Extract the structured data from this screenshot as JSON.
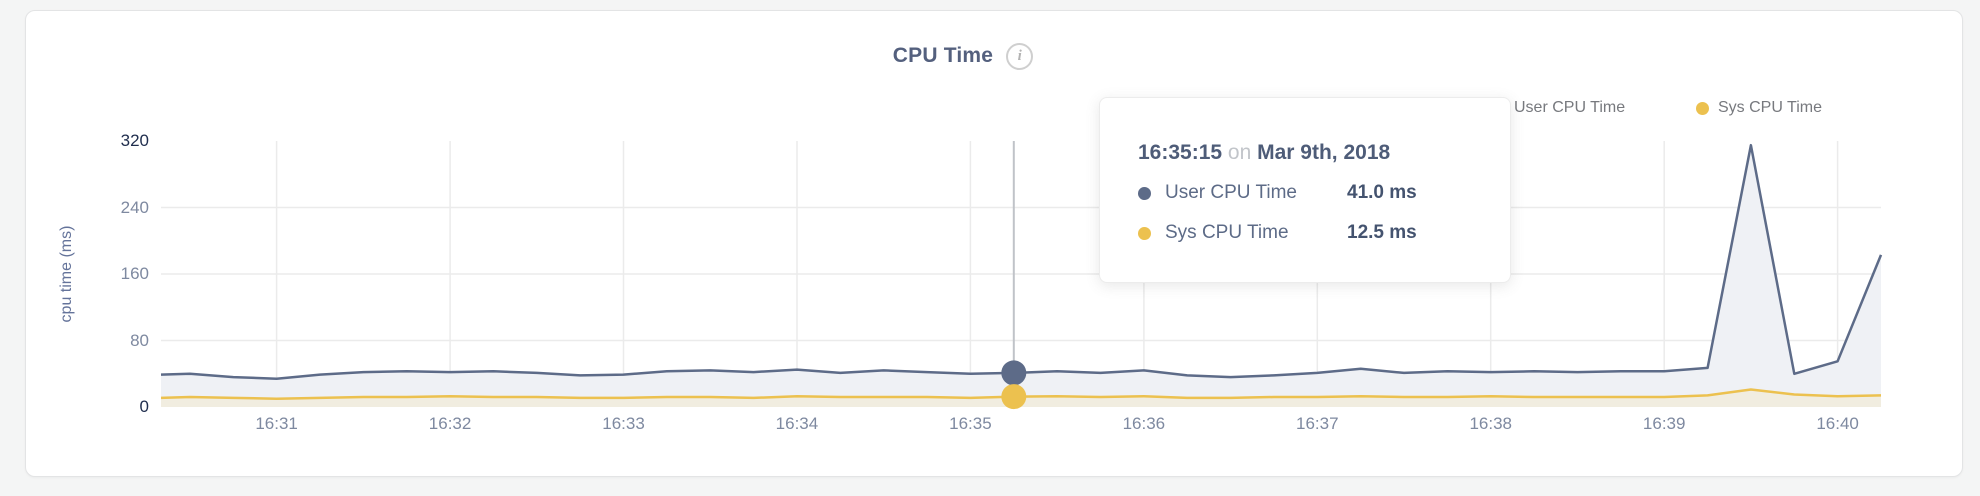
{
  "header": {
    "title": "CPU Time",
    "info_icon": "i"
  },
  "legend": [
    {
      "label": "User CPU Time",
      "color": "#5d6b88"
    },
    {
      "label": "Sys CPU Time",
      "color": "#ecc14f"
    }
  ],
  "tooltip": {
    "time": "16:35:15",
    "connector": "on",
    "date": "Mar 9th, 2018",
    "rows": [
      {
        "label": "User CPU Time",
        "value": "41.0 ms",
        "color": "#5d6b88"
      },
      {
        "label": "Sys CPU Time",
        "value": "12.5 ms",
        "color": "#ecc14f"
      }
    ]
  },
  "axis": {
    "tick_color": "#7e89a0",
    "tick_color_strong": "#1f2d4d",
    "grid_color": "#ebebeb",
    "crosshair_color": "#c0c3c8"
  },
  "chart_data": {
    "type": "area",
    "title": "CPU Time",
    "xlabel": "",
    "ylabel": "cpu time (ms)",
    "ylim": [
      0,
      320
    ],
    "yticks": [
      0,
      80,
      160,
      240,
      320
    ],
    "ytick_gridlines": [
      80,
      160,
      240
    ],
    "xticks": [
      "16:31",
      "16:32",
      "16:33",
      "16:34",
      "16:35",
      "16:36",
      "16:37",
      "16:38",
      "16:39",
      "16:40"
    ],
    "legend_position": "top-right",
    "grid": true,
    "x_times": [
      "16:30:20",
      "16:30:30",
      "16:30:45",
      "16:31:00",
      "16:31:15",
      "16:31:30",
      "16:31:45",
      "16:32:00",
      "16:32:15",
      "16:32:30",
      "16:32:45",
      "16:33:00",
      "16:33:15",
      "16:33:30",
      "16:33:45",
      "16:34:00",
      "16:34:15",
      "16:34:30",
      "16:34:45",
      "16:35:00",
      "16:35:15",
      "16:35:30",
      "16:35:45",
      "16:36:00",
      "16:36:15",
      "16:36:30",
      "16:36:45",
      "16:37:00",
      "16:37:15",
      "16:37:30",
      "16:37:45",
      "16:38:00",
      "16:38:15",
      "16:38:30",
      "16:38:45",
      "16:39:00",
      "16:39:15",
      "16:39:30",
      "16:39:45",
      "16:40:00",
      "16:40:15"
    ],
    "series": [
      {
        "name": "User CPU Time",
        "color": "#5d6b88",
        "fill": "#eff1f5",
        "unit": "ms",
        "values": [
          39,
          40,
          36,
          34,
          39,
          42,
          43,
          42,
          43,
          41,
          38,
          39,
          43,
          44,
          42,
          45,
          41,
          44,
          42,
          40,
          41,
          43,
          41,
          44,
          38,
          36,
          38,
          41,
          46,
          41,
          43,
          42,
          43,
          42,
          43,
          43,
          47,
          315,
          40,
          55,
          183
        ]
      },
      {
        "name": "Sys CPU Time",
        "color": "#ecc14f",
        "fill": "#f1ede0",
        "unit": "ms",
        "values": [
          11,
          12,
          11,
          10,
          11,
          12,
          12,
          13,
          12,
          12,
          11,
          11,
          12,
          12,
          11,
          13,
          12,
          12,
          12,
          11,
          12.5,
          13,
          12,
          13,
          11,
          11,
          12,
          12,
          13,
          12,
          12,
          13,
          12,
          12,
          12,
          12,
          14,
          21,
          15,
          13,
          14
        ]
      }
    ],
    "hover": {
      "index": 20,
      "time": "16:35:15",
      "user_value_ms": 41.0,
      "sys_value_ms": 12.5
    }
  }
}
